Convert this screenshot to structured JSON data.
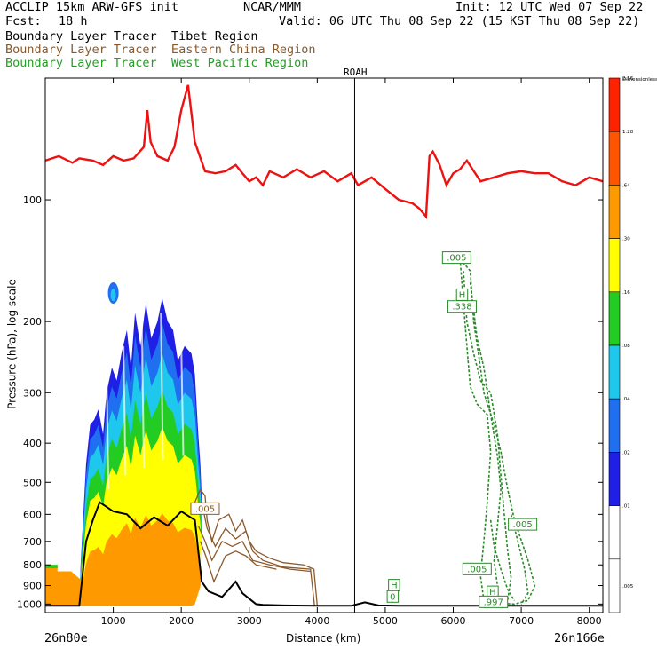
{
  "header": {
    "model": "ACCLIP 15km ARW-GFS init",
    "org": "NCAR/MMM",
    "init": "Init: 12 UTC Wed 07 Sep 22",
    "fcst_label": "Fcst:",
    "fcst_value": "18 h",
    "valid": "Valid: 06 UTC Thu 08 Sep 22 (15 KST Thu 08 Sep 22)"
  },
  "legend": {
    "tibet": "Boundary Layer Tracer  Tibet Region",
    "eastern_china": "Boundary Layer Tracer  Eastern China Region",
    "west_pacific": "Boundary Layer Tracer  West Pacific Region"
  },
  "chart_data": {
    "type": "cross-section",
    "marker_label": "ROAH",
    "marker_x_km": 4550,
    "xlabel": "Distance (km)",
    "ylabel": "Pressure (hPa), log scale",
    "x_start_label": "26n80e",
    "x_end_label": "26n166e",
    "x_ticks": [
      1000,
      2000,
      3000,
      4000,
      5000,
      6000,
      7000,
      8000
    ],
    "y_ticks": [
      100,
      200,
      300,
      400,
      500,
      600,
      700,
      800,
      900,
      1000
    ],
    "xlim": [
      0,
      8200
    ],
    "ylim": [
      1050,
      50
    ],
    "colorbar": {
      "colors": [
        "#ffffff",
        "#ffffff",
        "#1f1fe6",
        "#1f6ff0",
        "#1ec8ec",
        "#22cc22",
        "#ffff00",
        "#ff9900",
        "#ff5500",
        "#ff2200"
      ],
      "labels": [
        ".005",
        ".01",
        ".02",
        ".04",
        ".08",
        ".16",
        ".30",
        ".64",
        "1.28",
        "2.56",
        "Dimensionless"
      ]
    },
    "annotations": [
      {
        "text": ".005",
        "x_km": 6050,
        "p": 140,
        "color": "#2a8a2a"
      },
      {
        "text": "H",
        "x_km": 6130,
        "p": 173,
        "color": "#2a8a2a"
      },
      {
        "text": ".338",
        "x_km": 6130,
        "p": 185,
        "color": "#2a8a2a"
      },
      {
        "text": ".005",
        "x_km": 2350,
        "p": 585,
        "color": "#8b5a2b"
      },
      {
        "text": ".005",
        "x_km": 7020,
        "p": 640,
        "color": "#2a8a2a"
      },
      {
        "text": ".005",
        "x_km": 6350,
        "p": 825,
        "color": "#2a8a2a"
      },
      {
        "text": "H",
        "x_km": 5130,
        "p": 905,
        "color": "#2a8a2a"
      },
      {
        "text": "0",
        "x_km": 5110,
        "p": 965,
        "color": "#2a8a2a"
      },
      {
        "text": "H",
        "x_km": 6580,
        "p": 940,
        "color": "#2a8a2a"
      },
      {
        "text": ".997",
        "x_km": 6590,
        "p": 995,
        "color": "#2a8a2a"
      }
    ],
    "tropopause_series": {
      "name": "tropopause (red)",
      "x": [
        0,
        200,
        400,
        500,
        700,
        850,
        1000,
        1150,
        1300,
        1450,
        1500,
        1550,
        1650,
        1800,
        1900,
        2000,
        2100,
        2200,
        2350,
        2500,
        2650,
        2800,
        2900,
        3000,
        3100,
        3200,
        3300,
        3500,
        3700,
        3900,
        4100,
        4300,
        4500,
        4600,
        4800,
        5000,
        5200,
        5400,
        5500,
        5600,
        5650,
        5700,
        5800,
        5900,
        6000,
        6100,
        6200,
        6400,
        6600,
        6800,
        7000,
        7200,
        7400,
        7600,
        7800,
        8000,
        8200
      ],
      "p": [
        80,
        78,
        81,
        79,
        80,
        82,
        78,
        80,
        79,
        74,
        60,
        72,
        78,
        80,
        74,
        60,
        52,
        72,
        85,
        86,
        85,
        82,
        86,
        90,
        88,
        92,
        85,
        88,
        84,
        88,
        85,
        90,
        86,
        92,
        88,
        94,
        100,
        102,
        105,
        110,
        78,
        76,
        82,
        92,
        86,
        84,
        80,
        90,
        88,
        86,
        85,
        86,
        86,
        90,
        92,
        88,
        90
      ]
    },
    "surface_series": {
      "name": "terrain (black)",
      "x": [
        0,
        500,
        600,
        700,
        800,
        1000,
        1200,
        1400,
        1600,
        1800,
        2000,
        2200,
        2300,
        2400,
        2600,
        2800,
        2900,
        3000,
        3100,
        3200,
        3500,
        4000,
        4500,
        4700,
        4900,
        5200,
        6000,
        7000,
        8200
      ],
      "p": [
        1010,
        1010,
        700,
        620,
        560,
        590,
        600,
        650,
        610,
        640,
        590,
        620,
        880,
        930,
        960,
        880,
        940,
        970,
        1000,
        1005,
        1008,
        1010,
        1010,
        990,
        1008,
        1010,
        1010,
        1010,
        1010
      ]
    }
  }
}
